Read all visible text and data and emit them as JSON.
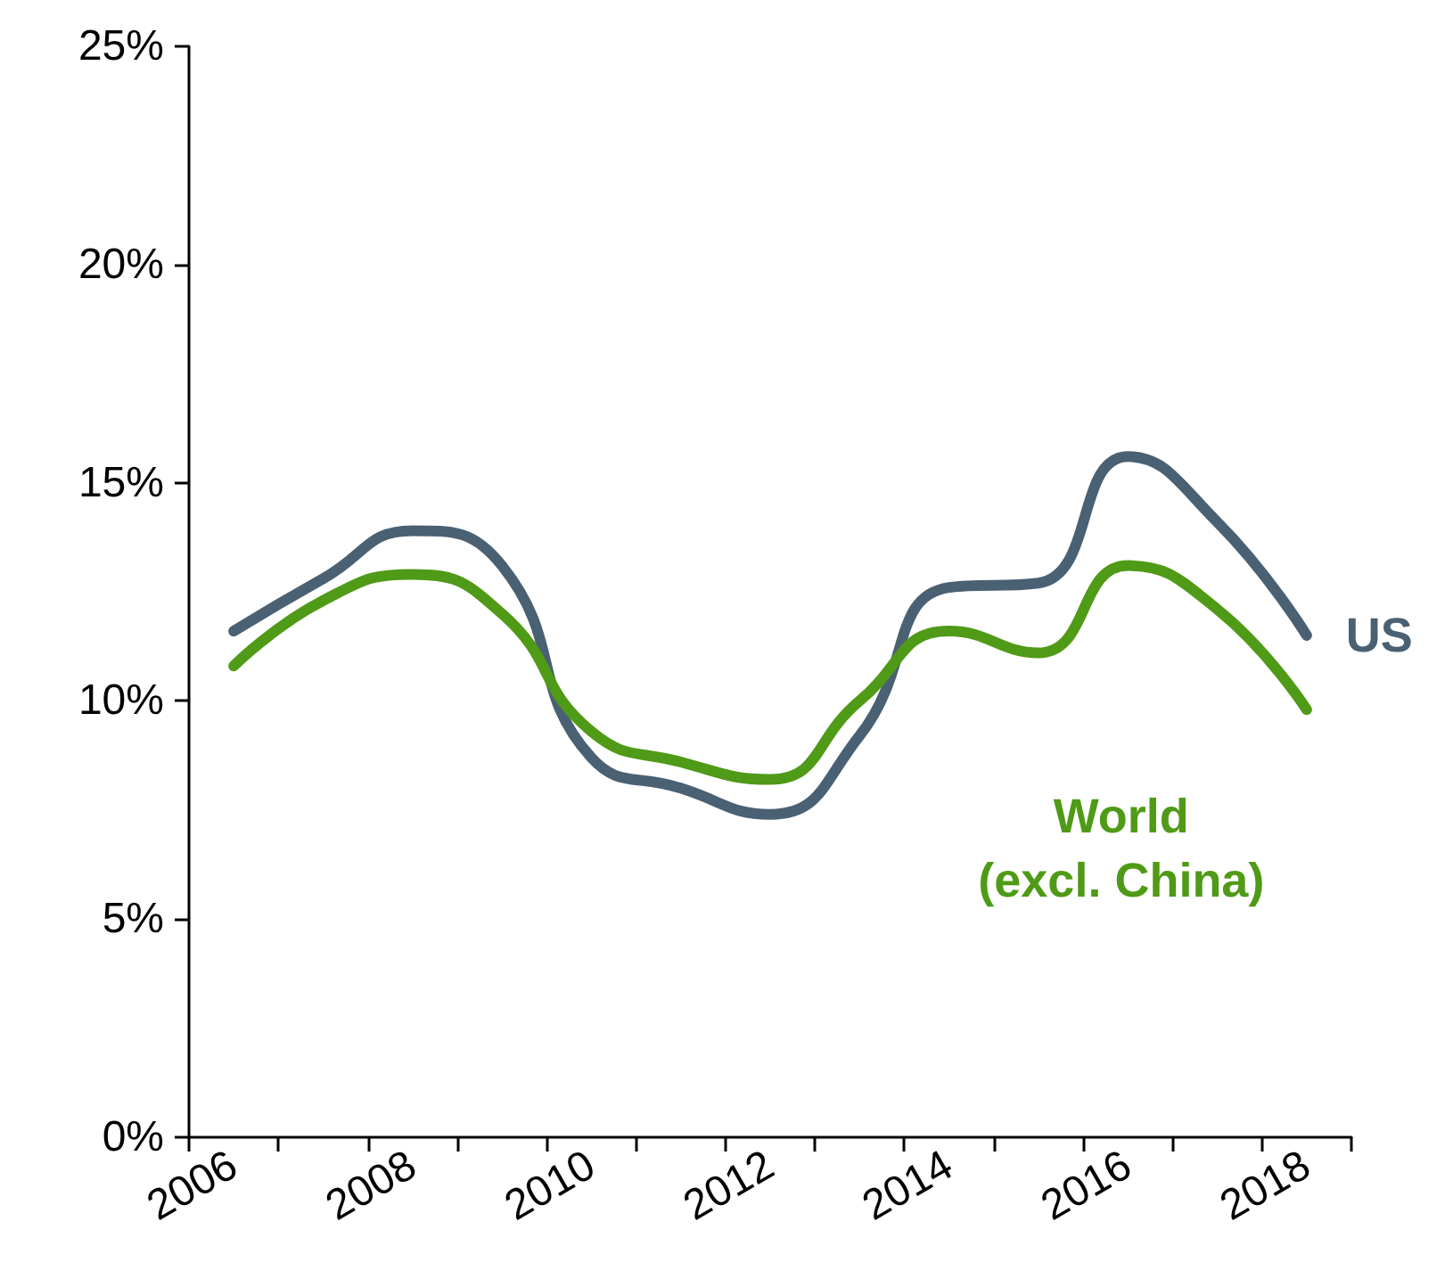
{
  "chart_data": {
    "type": "line",
    "categories": [
      "2006",
      null,
      "2008",
      null,
      "2010",
      null,
      "2012",
      null,
      "2014",
      null,
      "2016",
      null,
      "2018"
    ],
    "series": [
      {
        "name": "US",
        "color": "#4a6073",
        "values": [
          11.6,
          12.8,
          13.9,
          13.1,
          8.7,
          8.0,
          7.4,
          9.2,
          12.6,
          12.7,
          15.6,
          14.1,
          11.5
        ]
      },
      {
        "name": "World (excl. China)",
        "color": "#4f9a16",
        "values": [
          10.8,
          12.3,
          12.9,
          12.0,
          9.3,
          8.6,
          8.2,
          10.0,
          11.6,
          11.1,
          13.1,
          12.1,
          9.8
        ]
      }
    ],
    "ylim": [
      0,
      25
    ],
    "yticks": [
      {
        "value": 0,
        "label": "0%"
      },
      {
        "value": 5,
        "label": "5%"
      },
      {
        "value": 10,
        "label": "10%"
      },
      {
        "value": 15,
        "label": "15%"
      },
      {
        "value": 20,
        "label": "20%"
      },
      {
        "value": 25,
        "label": "25%"
      }
    ],
    "grid": false,
    "legend": false,
    "marker": "none",
    "line_style": "solid"
  }
}
